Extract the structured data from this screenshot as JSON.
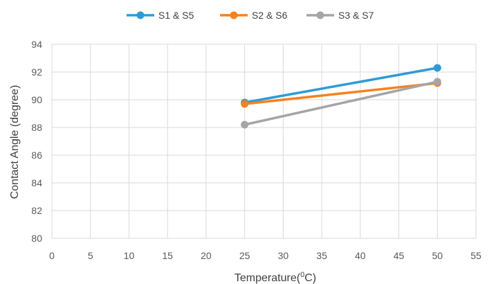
{
  "chart_data": {
    "type": "line",
    "xlabel": "Temperature(",
    "xlabel_super": "0",
    "xlabel_suffix": "C)",
    "ylabel": "Contact Angle (degree)",
    "xlim": [
      0,
      55
    ],
    "ylim": [
      80,
      94
    ],
    "x_ticks": [
      0,
      5,
      10,
      15,
      20,
      25,
      30,
      35,
      40,
      45,
      50,
      55
    ],
    "y_ticks": [
      80,
      82,
      84,
      86,
      88,
      90,
      92,
      94
    ],
    "grid": true,
    "legend_position": "top",
    "series": [
      {
        "name": "S1 & S5",
        "color": "#2e9bd6",
        "x": [
          25,
          50
        ],
        "y": [
          89.8,
          92.3
        ]
      },
      {
        "name": "S2 & S6",
        "color": "#f5821f",
        "x": [
          25,
          50
        ],
        "y": [
          89.7,
          91.2
        ]
      },
      {
        "name": "S3 & S7",
        "color": "#a5a5a5",
        "x": [
          25,
          50
        ],
        "y": [
          88.2,
          91.3
        ]
      }
    ]
  }
}
